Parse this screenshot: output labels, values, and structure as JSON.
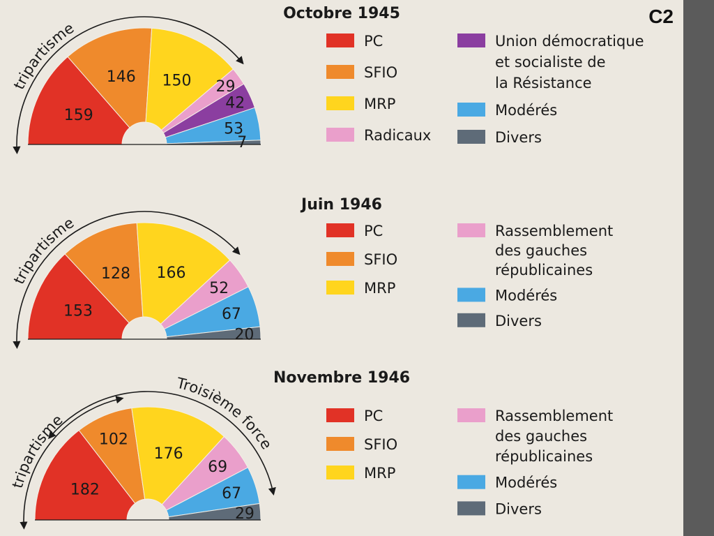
{
  "page_label": "C2",
  "colors": {
    "PC": "#e13226",
    "SFIO": "#ef8a2c",
    "MRP": "#ffd51e",
    "Radicaux": "#ea9fcb",
    "UDSR": "#8b3ea0",
    "Modérés": "#4aa9e3",
    "Divers": "#5e6b78"
  },
  "arrows": {
    "tripartisme": "tripartisme",
    "troisieme_force": "Troisième force"
  },
  "chart_data": [
    {
      "type": "pie",
      "subtype": "hemicycle",
      "title": "Octobre 1945",
      "arc_label": "tripartisme",
      "slices": [
        {
          "key": "PC",
          "value": 159
        },
        {
          "key": "SFIO",
          "value": 146
        },
        {
          "key": "MRP",
          "value": 150
        },
        {
          "key": "Radicaux",
          "value": 29
        },
        {
          "key": "UDSR",
          "value": 42
        },
        {
          "key": "Modérés",
          "value": 53
        },
        {
          "key": "Divers",
          "value": 7
        }
      ],
      "legend_left": [
        {
          "key": "PC",
          "label": "PC"
        },
        {
          "key": "SFIO",
          "label": "SFIO"
        },
        {
          "key": "MRP",
          "label": "MRP"
        },
        {
          "key": "Radicaux",
          "label": "Radicaux"
        }
      ],
      "legend_right": [
        {
          "key": "UDSR",
          "lines": [
            "Union démocratique",
            "et socialiste de",
            "la Résistance"
          ]
        },
        {
          "key": "Modérés",
          "lines": [
            "Modérés"
          ]
        },
        {
          "key": "Divers",
          "lines": [
            "Divers"
          ]
        }
      ]
    },
    {
      "type": "pie",
      "subtype": "hemicycle",
      "title": "Juin 1946",
      "arc_label": "tripartisme",
      "slices": [
        {
          "key": "PC",
          "value": 153
        },
        {
          "key": "SFIO",
          "value": 128
        },
        {
          "key": "MRP",
          "value": 166
        },
        {
          "key": "Radicaux",
          "value": 52
        },
        {
          "key": "Modérés",
          "value": 67
        },
        {
          "key": "Divers",
          "value": 20
        }
      ],
      "legend_left": [
        {
          "key": "PC",
          "label": "PC"
        },
        {
          "key": "SFIO",
          "label": "SFIO"
        },
        {
          "key": "MRP",
          "label": "MRP"
        }
      ],
      "legend_right": [
        {
          "key": "Radicaux",
          "lines": [
            "Rassemblement",
            "des gauches",
            "républicaines"
          ]
        },
        {
          "key": "Modérés",
          "lines": [
            "Modérés"
          ]
        },
        {
          "key": "Divers",
          "lines": [
            "Divers"
          ]
        }
      ]
    },
    {
      "type": "pie",
      "subtype": "hemicycle",
      "title": "Novembre 1946",
      "arc_label": "tripartisme",
      "arc_label_2": "Troisième force",
      "slices": [
        {
          "key": "PC",
          "value": 182
        },
        {
          "key": "SFIO",
          "value": 102
        },
        {
          "key": "MRP",
          "value": 176
        },
        {
          "key": "Radicaux",
          "value": 69
        },
        {
          "key": "Modérés",
          "value": 67
        },
        {
          "key": "Divers",
          "value": 29
        }
      ],
      "legend_left": [
        {
          "key": "PC",
          "label": "PC"
        },
        {
          "key": "SFIO",
          "label": "SFIO"
        },
        {
          "key": "MRP",
          "label": "MRP"
        }
      ],
      "legend_right": [
        {
          "key": "Radicaux",
          "lines": [
            "Rassemblement",
            "des gauches",
            "républicaines"
          ]
        },
        {
          "key": "Modérés",
          "lines": [
            "Modérés"
          ]
        },
        {
          "key": "Divers",
          "lines": [
            "Divers"
          ]
        }
      ]
    }
  ]
}
